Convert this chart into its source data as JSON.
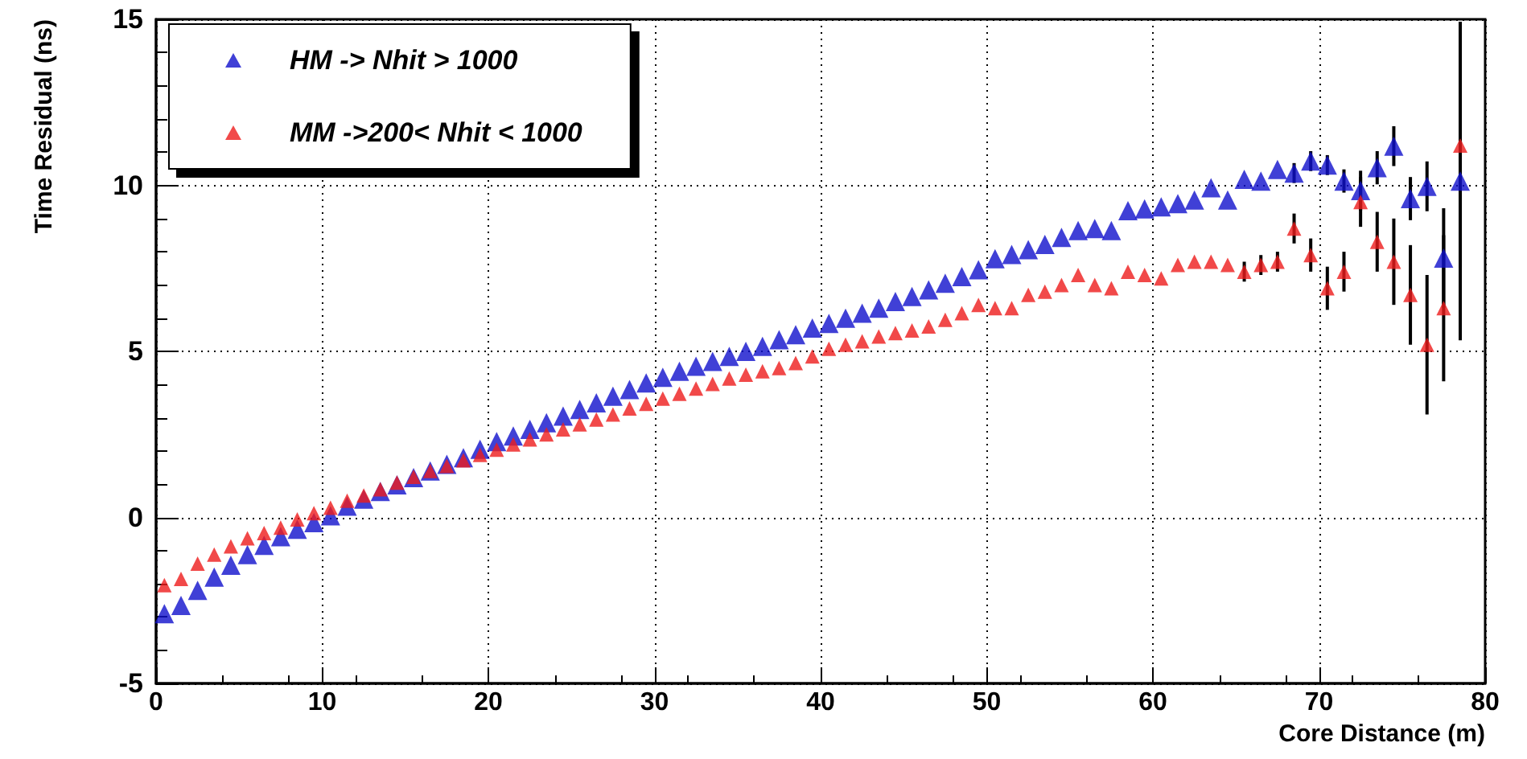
{
  "chart_data": {
    "type": "scatter",
    "xlabel": "Core Distance (m)",
    "ylabel": "Time Residual (ns)",
    "xlim": [
      0,
      80
    ],
    "xticks": [
      0,
      10,
      20,
      30,
      40,
      50,
      60,
      70,
      80
    ],
    "ylim": [
      -5,
      15
    ],
    "yticks": [
      -5,
      0,
      5,
      10,
      15
    ],
    "grid": true,
    "legend": "top left",
    "marker": "triangle",
    "x": [
      0.5,
      1.5,
      2.5,
      3.5,
      4.5,
      5.5,
      6.5,
      7.5,
      8.5,
      9.5,
      10.5,
      11.5,
      12.5,
      13.5,
      14.5,
      15.5,
      16.5,
      17.5,
      18.5,
      19.5,
      20.5,
      21.5,
      22.5,
      23.5,
      24.5,
      25.5,
      26.5,
      27.5,
      28.5,
      29.5,
      30.5,
      31.5,
      32.5,
      33.5,
      34.5,
      35.5,
      36.5,
      37.5,
      38.5,
      39.5,
      40.5,
      41.5,
      42.5,
      43.5,
      44.5,
      45.5,
      46.5,
      47.5,
      48.5,
      49.5,
      50.5,
      51.5,
      52.5,
      53.5,
      54.5,
      55.5,
      56.5,
      57.5,
      58.5,
      59.5,
      60.5,
      61.5,
      62.5,
      63.5,
      64.5,
      65.5,
      66.5,
      67.5,
      68.5,
      69.5,
      70.5,
      71.5,
      72.5,
      73.5,
      74.5,
      75.5,
      76.5,
      77.5,
      78.5
    ],
    "series": [
      {
        "name": "HM -> Nhit > 1000",
        "color": "#1010cc",
        "values": [
          -2.9,
          -2.65,
          -2.2,
          -1.8,
          -1.44,
          -1.12,
          -0.84,
          -0.58,
          -0.36,
          -0.16,
          0.05,
          0.34,
          0.55,
          0.78,
          0.98,
          1.2,
          1.4,
          1.6,
          1.8,
          2.05,
          2.28,
          2.45,
          2.65,
          2.85,
          3.05,
          3.25,
          3.45,
          3.65,
          3.85,
          4.05,
          4.22,
          4.4,
          4.55,
          4.7,
          4.85,
          5.0,
          5.15,
          5.35,
          5.5,
          5.7,
          5.84,
          6.0,
          6.15,
          6.3,
          6.5,
          6.65,
          6.85,
          7.05,
          7.25,
          7.46,
          7.79,
          7.92,
          8.06,
          8.22,
          8.43,
          8.64,
          8.7,
          8.64,
          9.24,
          9.29,
          9.35,
          9.45,
          9.56,
          9.93,
          9.56,
          10.18,
          10.13,
          10.48,
          10.37,
          10.73,
          10.61,
          10.13,
          9.84,
          10.53,
          11.18,
          9.6,
          9.97,
          7.81,
          10.13
        ],
        "errors": [
          null,
          null,
          null,
          null,
          null,
          null,
          null,
          null,
          null,
          null,
          null,
          null,
          null,
          null,
          null,
          null,
          null,
          null,
          null,
          null,
          null,
          null,
          null,
          null,
          null,
          null,
          null,
          null,
          null,
          null,
          null,
          null,
          null,
          null,
          null,
          null,
          null,
          null,
          null,
          null,
          null,
          null,
          null,
          null,
          null,
          null,
          null,
          null,
          null,
          null,
          null,
          null,
          null,
          null,
          null,
          null,
          null,
          null,
          null,
          null,
          null,
          null,
          null,
          null,
          null,
          null,
          null,
          null,
          0.3,
          0.3,
          0.3,
          0.35,
          0.6,
          0.5,
          0.6,
          0.65,
          0.75,
          1.5,
          4.8
        ]
      },
      {
        "name": "MM ->200< Nhit < 1000",
        "color": "#ee1c1c",
        "values": [
          -2.04,
          -1.85,
          -1.39,
          -1.12,
          -0.87,
          -0.63,
          -0.47,
          -0.31,
          -0.06,
          0.13,
          0.29,
          0.5,
          0.66,
          0.85,
          1.05,
          1.22,
          1.4,
          1.55,
          1.72,
          1.88,
          2.04,
          2.2,
          2.35,
          2.5,
          2.65,
          2.8,
          2.95,
          3.1,
          3.28,
          3.42,
          3.58,
          3.72,
          3.88,
          4.02,
          4.18,
          4.3,
          4.4,
          4.5,
          4.65,
          4.85,
          5.08,
          5.2,
          5.3,
          5.45,
          5.55,
          5.63,
          5.75,
          5.95,
          6.15,
          6.4,
          6.3,
          6.3,
          6.7,
          6.8,
          7.0,
          7.3,
          7.0,
          6.9,
          7.4,
          7.3,
          7.2,
          7.6,
          7.7,
          7.7,
          7.6,
          7.4,
          7.6,
          7.7,
          8.7,
          7.9,
          6.9,
          7.4,
          9.5,
          8.3,
          7.7,
          6.7,
          5.2,
          6.3,
          11.2
        ],
        "errors": [
          null,
          null,
          null,
          null,
          null,
          null,
          null,
          null,
          null,
          null,
          null,
          null,
          null,
          null,
          null,
          null,
          null,
          null,
          null,
          null,
          null,
          null,
          null,
          null,
          null,
          null,
          null,
          null,
          null,
          null,
          null,
          null,
          null,
          null,
          null,
          null,
          null,
          null,
          null,
          null,
          null,
          null,
          null,
          null,
          null,
          null,
          null,
          null,
          null,
          null,
          null,
          null,
          null,
          null,
          null,
          null,
          null,
          null,
          null,
          null,
          null,
          null,
          null,
          null,
          null,
          0.3,
          0.3,
          0.3,
          0.45,
          0.5,
          0.65,
          0.6,
          0.75,
          0.9,
          1.3,
          1.5,
          2.1,
          2.2,
          3.7
        ]
      }
    ]
  }
}
